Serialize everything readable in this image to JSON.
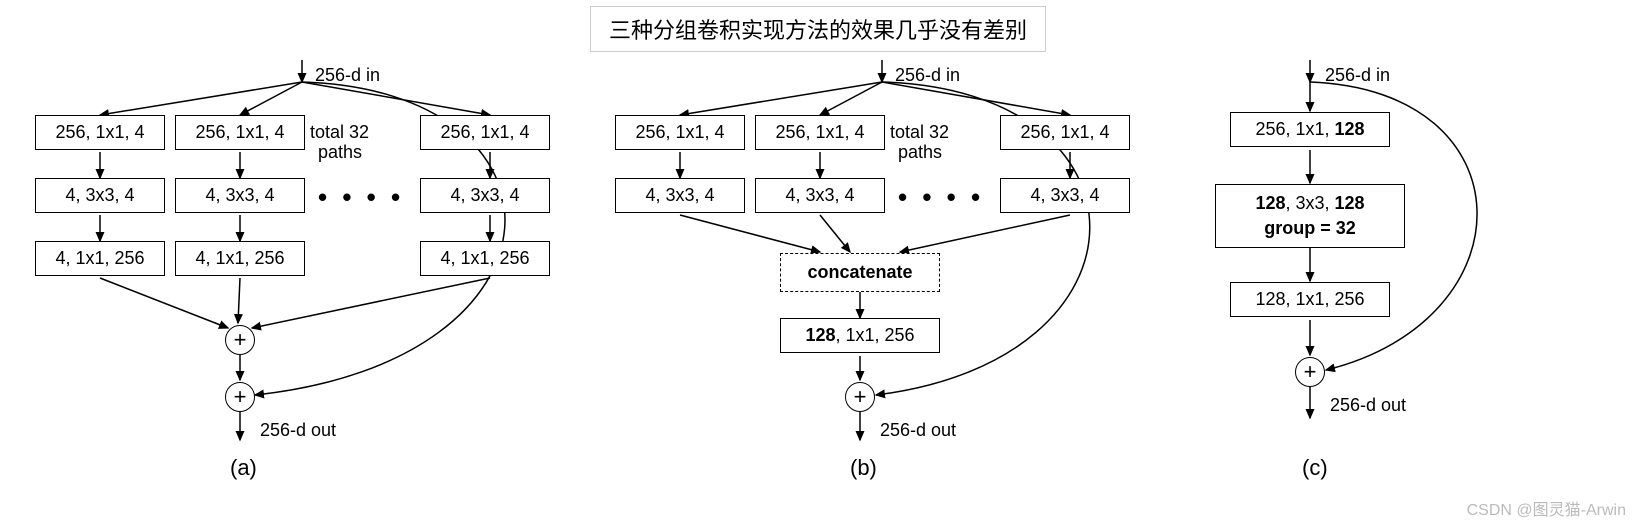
{
  "title": "三种分组卷积实现方法的效果几乎没有差别",
  "common": {
    "in_label": "256-d in",
    "out_label": "256-d out",
    "paths_label_1": "total 32",
    "paths_label_2": "paths",
    "plus": "+",
    "dots": "• • • •"
  },
  "panelA": {
    "label": "(a)",
    "row1": "256, 1x1, 4",
    "row2": "4, 3x3, 4",
    "row3": "4, 1x1, 256"
  },
  "panelB": {
    "label": "(b)",
    "row1": "256, 1x1, 4",
    "row2": "4, 3x3, 4",
    "concat": "concatenate",
    "out_html": "<b>128</b>, 1x1, 256"
  },
  "panelC": {
    "label": "(c)",
    "row1_html": "256, 1x1, <b>128</b>",
    "row2_html": "<b>128</b>, 3x3, <b>128</b><br><b>group = 32</b>",
    "row3": "128, 1x1, 256"
  },
  "watermark": "CSDN @图灵猫-Arwin",
  "style": {
    "stroke": "#000",
    "stroke_width": 1.5
  }
}
